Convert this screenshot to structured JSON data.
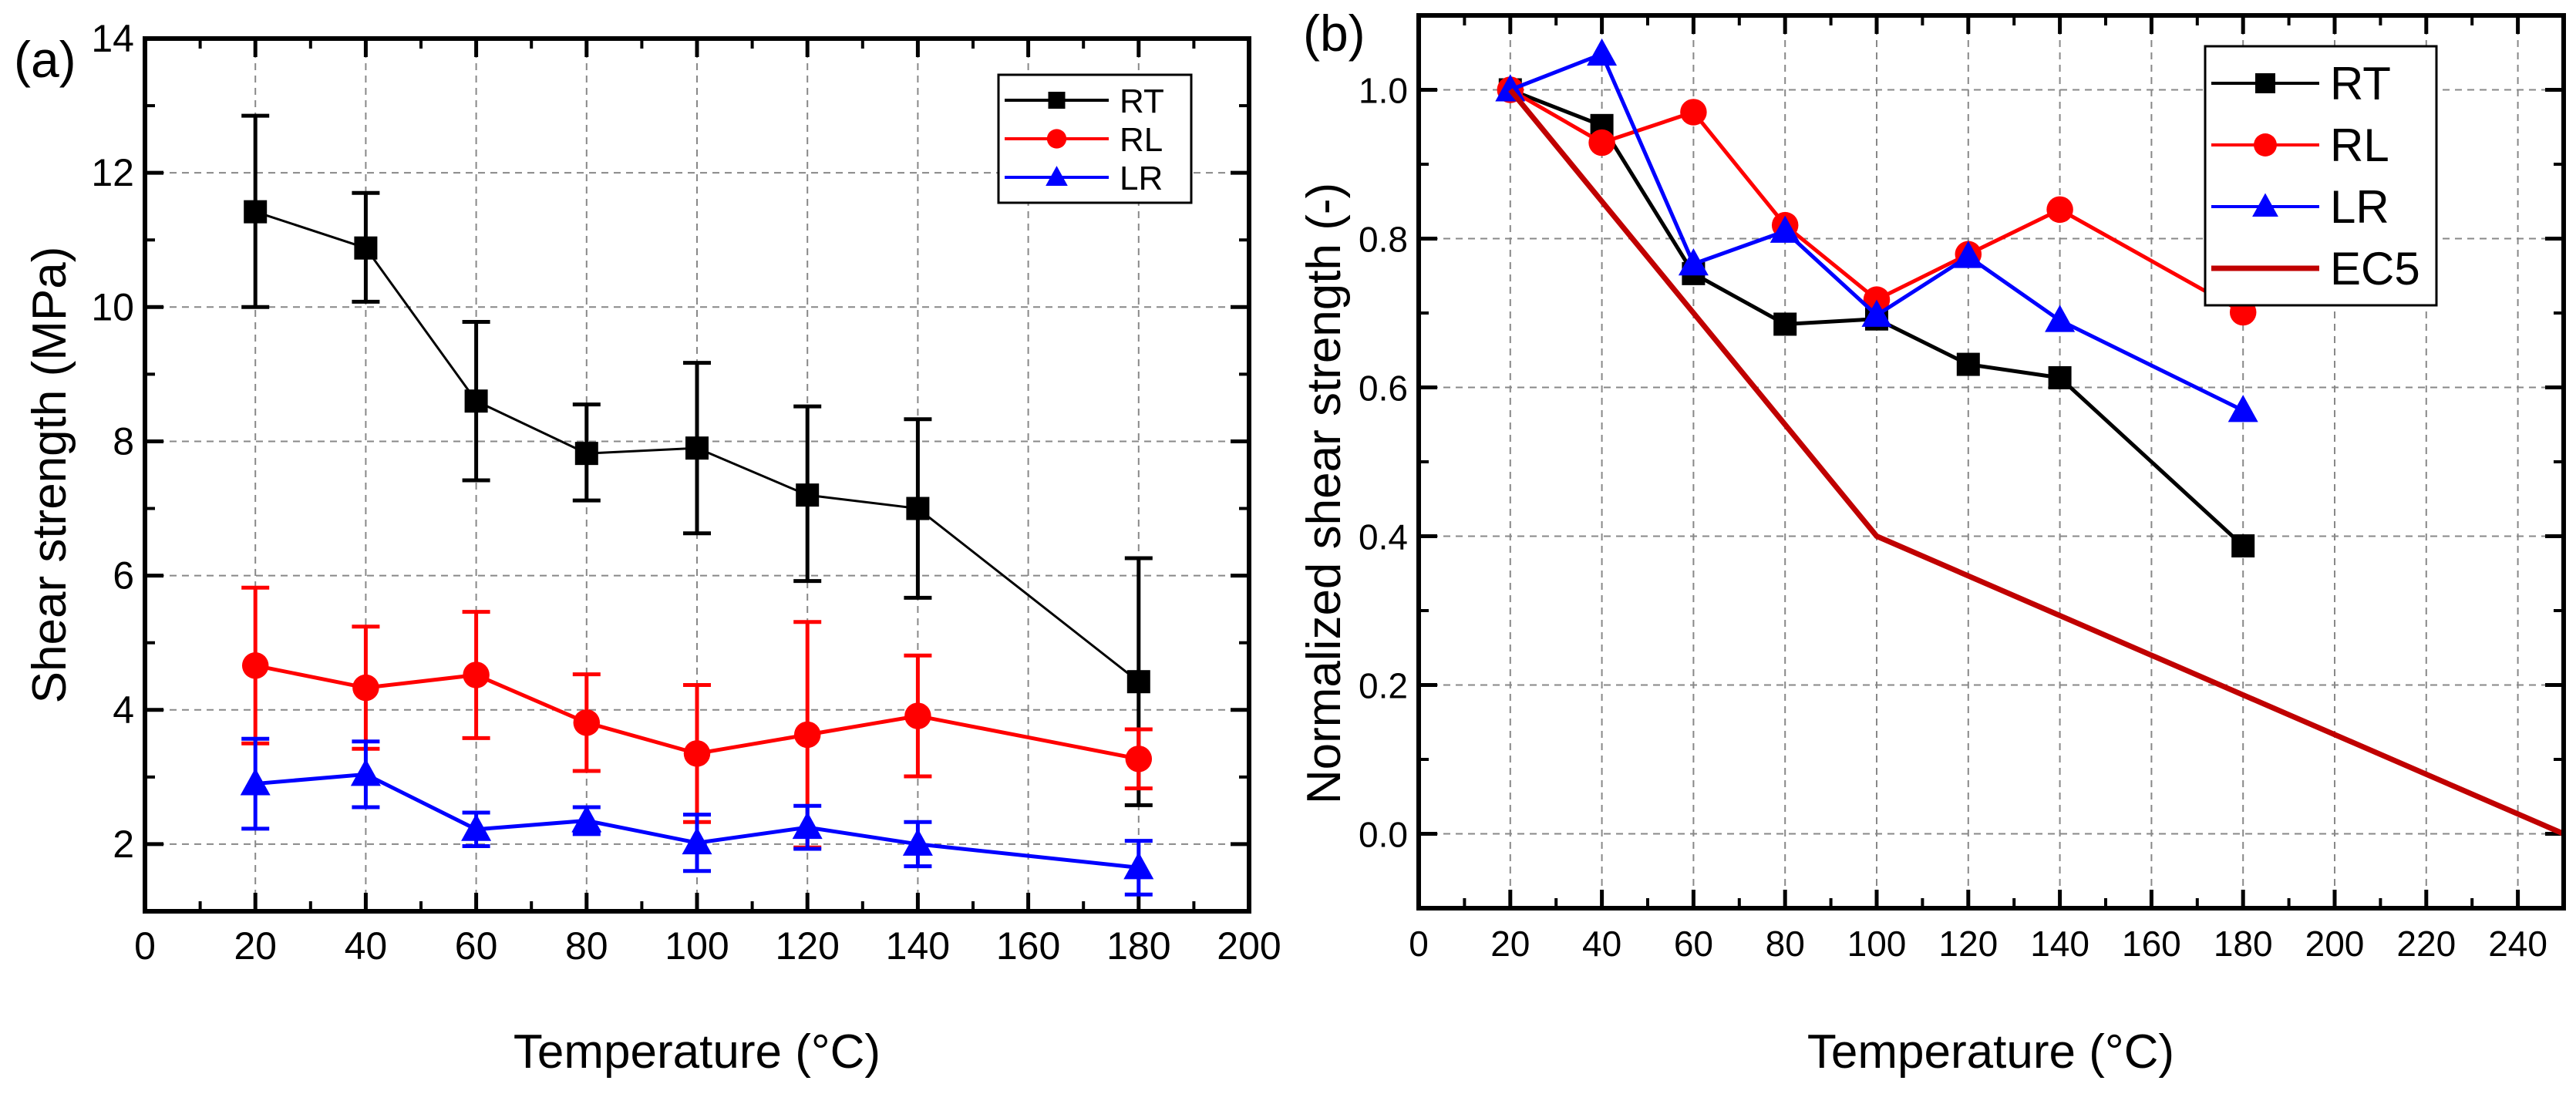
{
  "chart_data": [
    {
      "type": "line",
      "panel_label": "(a)",
      "xlabel": "Temperature (°C)",
      "ylabel": "Shear strength (MPa)",
      "xlim": [
        0,
        200
      ],
      "ylim": [
        1,
        14
      ],
      "xticks": [
        0,
        20,
        40,
        60,
        80,
        100,
        120,
        140,
        160,
        180,
        200
      ],
      "yticks": [
        2,
        4,
        6,
        8,
        10,
        12,
        14
      ],
      "grid": true,
      "legend_position": "top-right",
      "x": [
        20,
        40,
        60,
        80,
        100,
        120,
        140,
        180
      ],
      "series": [
        {
          "name": "RT",
          "color": "#000000",
          "marker": "square",
          "values": [
            11.42,
            10.88,
            8.6,
            7.82,
            7.9,
            7.2,
            7.0,
            4.42
          ],
          "err_low": [
            10.0,
            10.08,
            7.42,
            7.12,
            6.63,
            5.92,
            5.67,
            2.58
          ],
          "err_high": [
            12.85,
            11.7,
            9.78,
            8.55,
            9.17,
            8.52,
            8.33,
            6.26
          ]
        },
        {
          "name": "RL",
          "color": "#ff0000",
          "marker": "circle",
          "values": [
            4.66,
            4.33,
            4.52,
            3.81,
            3.35,
            3.63,
            3.91,
            3.27
          ],
          "err_low": [
            3.5,
            3.42,
            3.58,
            3.09,
            2.33,
            1.95,
            3.01,
            2.83
          ],
          "err_high": [
            5.82,
            5.24,
            5.46,
            4.53,
            4.37,
            5.31,
            4.81,
            3.71
          ]
        },
        {
          "name": "LR",
          "color": "#0000ff",
          "marker": "triangle",
          "values": [
            2.9,
            3.04,
            2.22,
            2.35,
            2.02,
            2.25,
            2.0,
            1.65
          ],
          "err_low": [
            2.23,
            2.55,
            1.97,
            2.15,
            1.6,
            1.93,
            1.67,
            1.25
          ],
          "err_high": [
            3.57,
            3.53,
            2.47,
            2.55,
            2.44,
            2.57,
            2.33,
            2.05
          ]
        }
      ]
    },
    {
      "type": "line",
      "panel_label": "(b)",
      "xlabel": "Temperature (°C)",
      "ylabel": "Normalized shear strength (-)",
      "xlim": [
        0,
        250
      ],
      "ylim": [
        -0.1,
        1.1
      ],
      "xticks": [
        0,
        20,
        40,
        60,
        80,
        100,
        120,
        140,
        160,
        180,
        200,
        220,
        240
      ],
      "yticks": [
        "0.0",
        "0.2",
        "0.4",
        "0.6",
        "0.8",
        "1.0"
      ],
      "grid": true,
      "legend_position": "top-right",
      "series": [
        {
          "name": "RT",
          "color": "#000000",
          "marker": "square",
          "x": [
            20,
            40,
            60,
            80,
            100,
            120,
            140,
            180
          ],
          "values": [
            1.0,
            0.952,
            0.753,
            0.685,
            0.692,
            0.631,
            0.613,
            0.387
          ]
        },
        {
          "name": "RL",
          "color": "#ff0000",
          "marker": "circle",
          "x": [
            20,
            40,
            60,
            80,
            100,
            120,
            140,
            180
          ],
          "values": [
            1.0,
            0.929,
            0.97,
            0.818,
            0.718,
            0.779,
            0.839,
            0.701
          ]
        },
        {
          "name": "LR",
          "color": "#0000ff",
          "marker": "triangle",
          "x": [
            20,
            40,
            60,
            80,
            100,
            120,
            140,
            180
          ],
          "values": [
            1.0,
            1.048,
            0.766,
            0.81,
            0.697,
            0.776,
            0.69,
            0.569
          ]
        },
        {
          "name": "EC5",
          "color": "#c00000",
          "marker": "none",
          "x": [
            20,
            100,
            250
          ],
          "values": [
            1.0,
            0.4,
            0.0
          ]
        }
      ]
    }
  ]
}
